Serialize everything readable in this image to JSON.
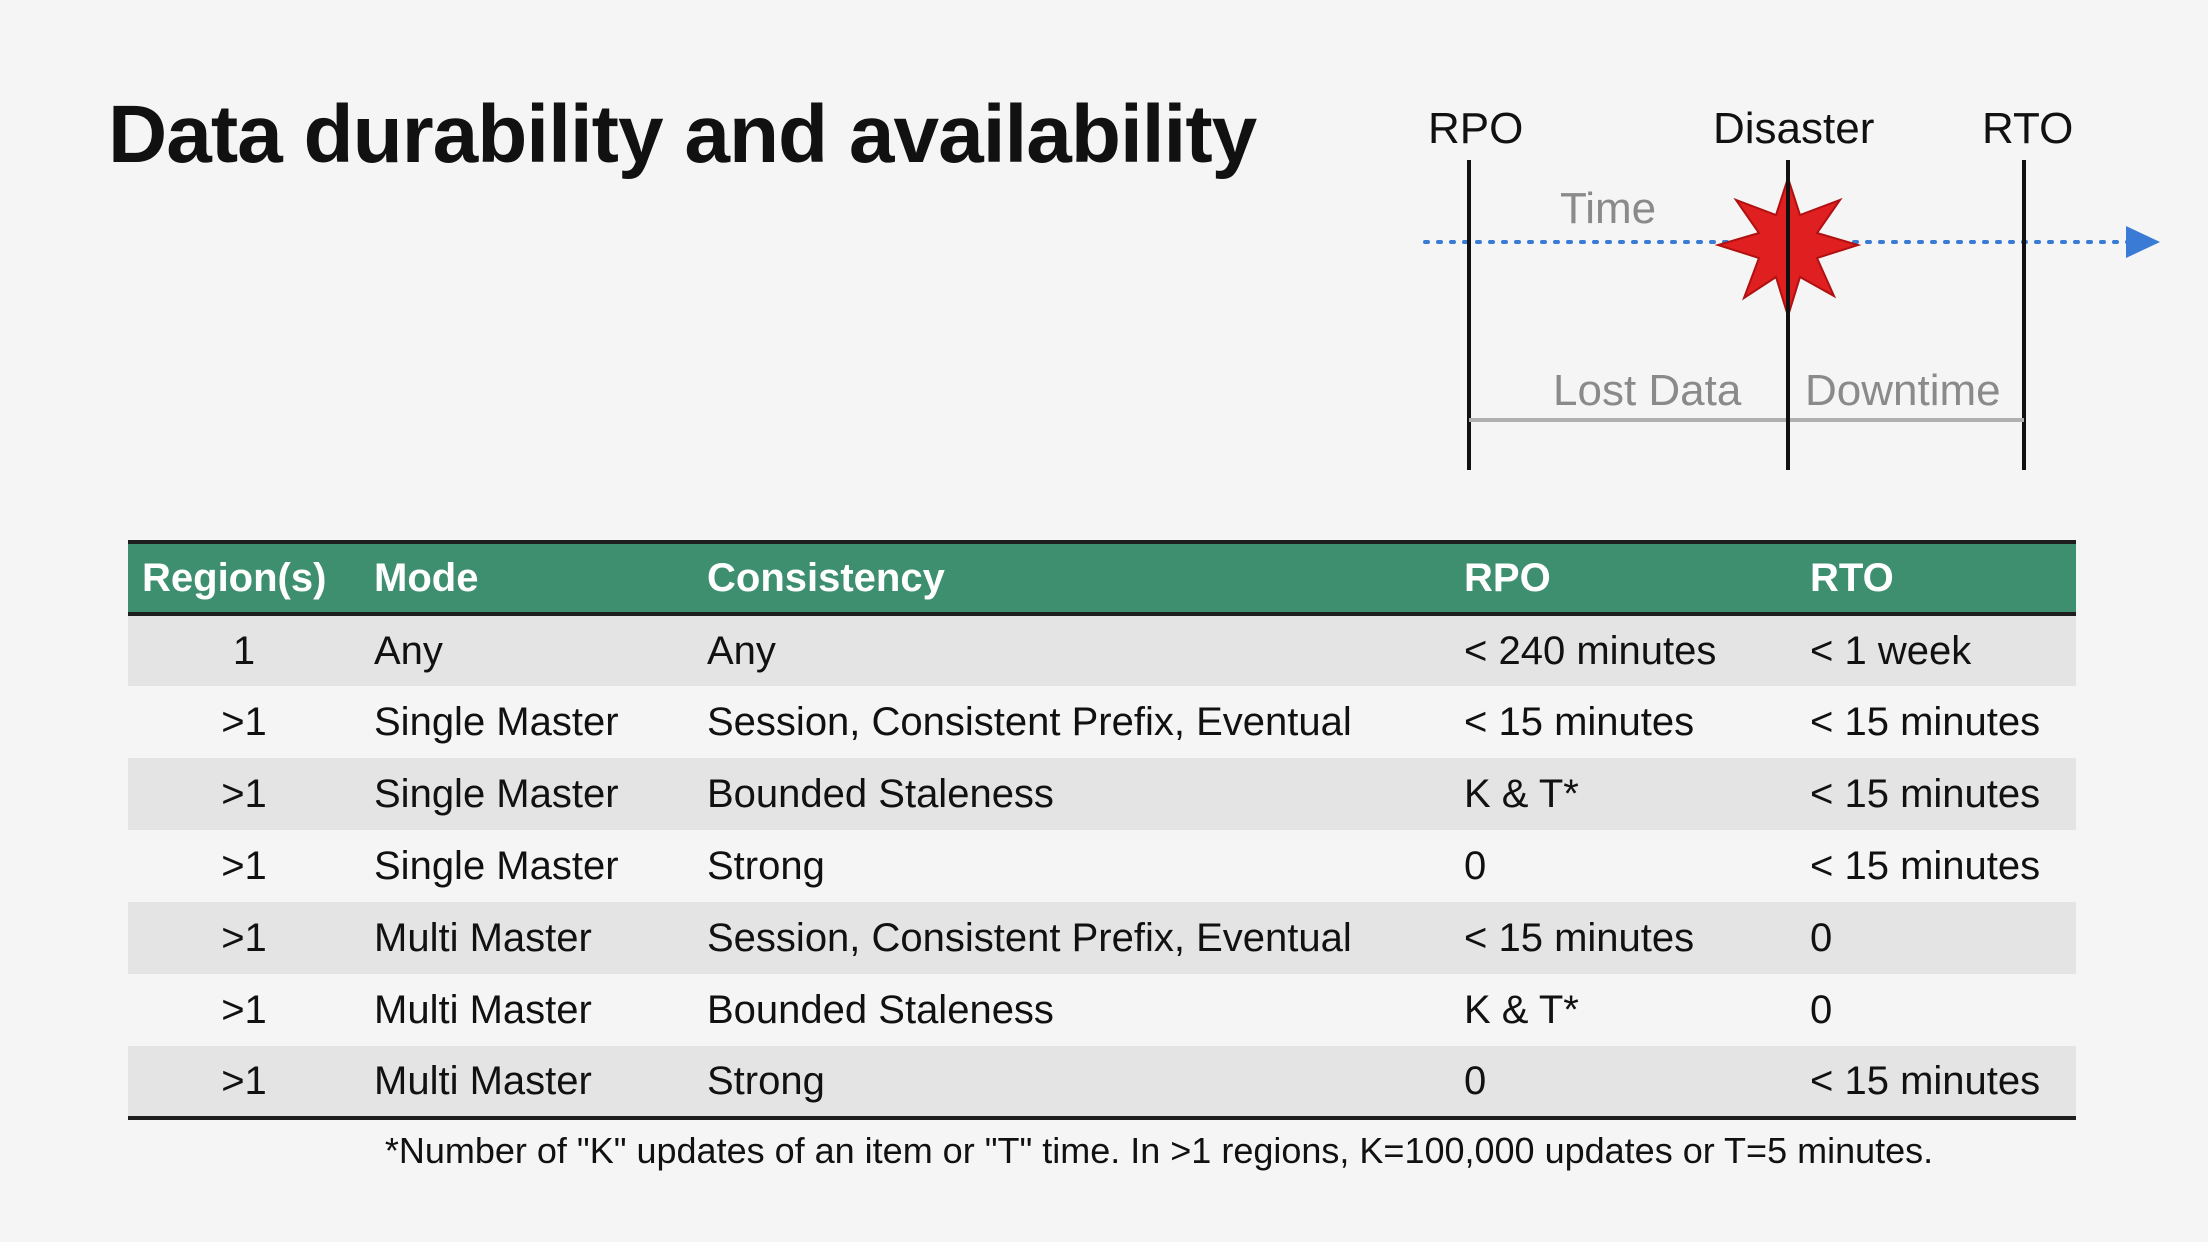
{
  "title": "Data durability and availability",
  "diagram": {
    "labels": {
      "rpo": "RPO",
      "disaster": "Disaster",
      "rto": "RTO",
      "time": "Time",
      "lost_data": "Lost Data",
      "downtime": "Downtime"
    },
    "colors": {
      "arrow": "#3a7bd5",
      "star": "#e02020",
      "span_line": "#b0b0b0"
    }
  },
  "table": {
    "headers": [
      "Region(s)",
      "Mode",
      "Consistency",
      "RPO",
      "RTO"
    ],
    "header_color": "#3e8f6f",
    "rows": [
      [
        "1",
        "Any",
        "Any",
        "< 240 minutes",
        "< 1 week"
      ],
      [
        ">1",
        "Single Master",
        "Session, Consistent Prefix, Eventual",
        "< 15 minutes",
        "< 15 minutes"
      ],
      [
        ">1",
        "Single Master",
        "Bounded Staleness",
        "K & T*",
        "< 15 minutes"
      ],
      [
        ">1",
        "Single Master",
        "Strong",
        "0",
        "< 15 minutes"
      ],
      [
        ">1",
        "Multi Master",
        "Session, Consistent Prefix, Eventual",
        "< 15 minutes",
        "0"
      ],
      [
        ">1",
        "Multi Master",
        "Bounded Staleness",
        "K & T*",
        "0"
      ],
      [
        ">1",
        "Multi Master",
        "Strong",
        "0",
        "< 15 minutes"
      ]
    ]
  },
  "footnote": "*Number of \"K\" updates of an item or \"T\" time. In >1 regions, K=100,000 updates or T=5 minutes."
}
